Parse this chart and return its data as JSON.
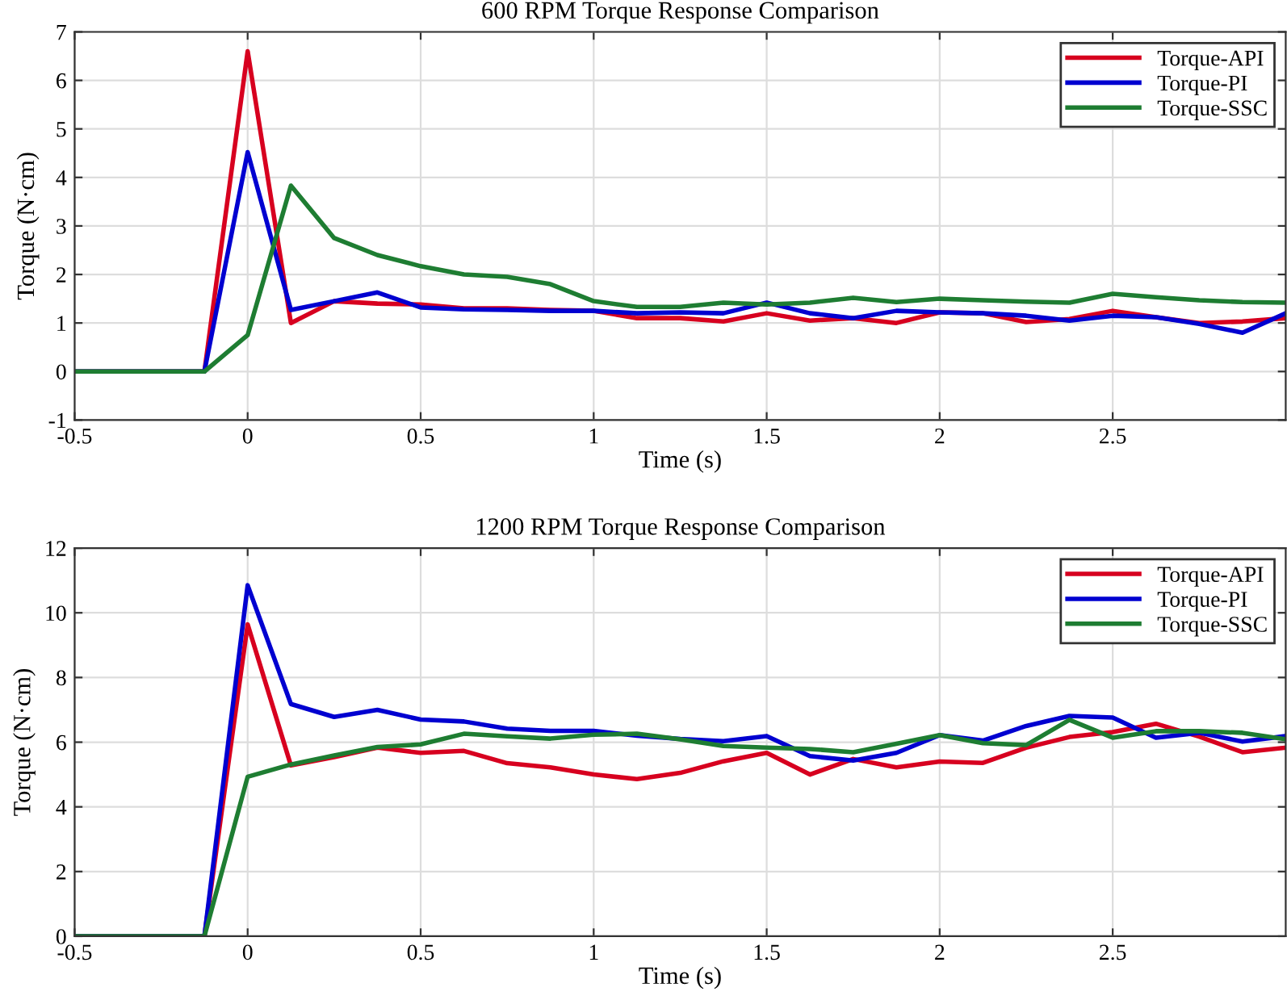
{
  "chart_data": [
    {
      "type": "line",
      "title": "600 RPM Torque Response Comparison",
      "xlabel": "Time (s)",
      "ylabel": "Torque (N·cm)",
      "x": [
        -0.5,
        -0.125,
        0,
        0.125,
        0.25,
        0.375,
        0.5,
        0.625,
        0.75,
        0.875,
        1.0,
        1.125,
        1.25,
        1.375,
        1.5,
        1.625,
        1.75,
        1.875,
        2.0,
        2.125,
        2.25,
        2.375,
        2.5,
        2.625,
        2.75,
        2.875,
        3.0
      ],
      "series": [
        {
          "name": "Torque-API",
          "color": "#d7001f",
          "values": [
            0,
            0,
            6.6,
            1.0,
            1.45,
            1.4,
            1.38,
            1.3,
            1.3,
            1.27,
            1.25,
            1.1,
            1.1,
            1.03,
            1.2,
            1.05,
            1.1,
            1.0,
            1.22,
            1.2,
            1.02,
            1.08,
            1.25,
            1.12,
            1.0,
            1.03,
            1.1
          ]
        },
        {
          "name": "Torque-PI",
          "color": "#0000d0",
          "values": [
            0,
            0,
            4.52,
            1.27,
            1.45,
            1.63,
            1.32,
            1.28,
            1.27,
            1.25,
            1.25,
            1.2,
            1.22,
            1.2,
            1.42,
            1.2,
            1.1,
            1.25,
            1.22,
            1.2,
            1.15,
            1.05,
            1.15,
            1.12,
            0.98,
            0.8,
            1.2
          ]
        },
        {
          "name": "Torque-SSC",
          "color": "#1e7d32",
          "values": [
            0,
            0,
            0.75,
            3.83,
            2.75,
            2.4,
            2.17,
            2.0,
            1.95,
            1.8,
            1.45,
            1.33,
            1.33,
            1.42,
            1.38,
            1.42,
            1.52,
            1.43,
            1.5,
            1.47,
            1.44,
            1.42,
            1.6,
            1.53,
            1.47,
            1.43,
            1.42
          ]
        }
      ],
      "xlim": [
        -0.5,
        3
      ],
      "xticks": [
        -0.5,
        0,
        0.5,
        1,
        1.5,
        2,
        2.5
      ],
      "ylim": [
        -1,
        7
      ],
      "yticks": [
        -1,
        0,
        1,
        2,
        3,
        4,
        5,
        6,
        7
      ],
      "grid": true,
      "legend": "top right",
      "line_style": "solid",
      "marker": "none"
    },
    {
      "type": "line",
      "title": "1200 RPM Torque Response Comparison",
      "xlabel": "Time (s)",
      "ylabel": "Torque (N·cm)",
      "x": [
        -0.5,
        -0.125,
        0,
        0.125,
        0.25,
        0.375,
        0.5,
        0.625,
        0.75,
        0.875,
        1.0,
        1.125,
        1.25,
        1.375,
        1.5,
        1.625,
        1.75,
        1.875,
        2.0,
        2.125,
        2.25,
        2.375,
        2.5,
        2.625,
        2.75,
        2.875,
        3.0
      ],
      "series": [
        {
          "name": "Torque-API",
          "color": "#d7001f",
          "values": [
            0,
            0,
            9.64,
            5.28,
            5.54,
            5.83,
            5.67,
            5.73,
            5.35,
            5.22,
            5.0,
            4.86,
            5.05,
            5.41,
            5.67,
            5.0,
            5.48,
            5.22,
            5.4,
            5.36,
            5.83,
            6.16,
            6.31,
            6.57,
            6.17,
            5.69,
            5.83
          ]
        },
        {
          "name": "Torque-PI",
          "color": "#0000d0",
          "values": [
            0,
            0,
            10.85,
            7.18,
            6.78,
            7.0,
            6.7,
            6.64,
            6.42,
            6.35,
            6.35,
            6.2,
            6.1,
            6.03,
            6.19,
            5.57,
            5.43,
            5.67,
            6.22,
            6.05,
            6.5,
            6.81,
            6.76,
            6.14,
            6.29,
            6.02,
            6.19
          ]
        },
        {
          "name": "Torque-SSC",
          "color": "#1e7d32",
          "values": [
            0,
            0,
            4.93,
            5.31,
            5.59,
            5.85,
            5.93,
            6.26,
            6.18,
            6.11,
            6.23,
            6.26,
            6.09,
            5.88,
            5.83,
            5.79,
            5.69,
            5.95,
            6.22,
            5.97,
            5.91,
            6.69,
            6.14,
            6.34,
            6.34,
            6.29,
            6.09
          ]
        }
      ],
      "xlim": [
        -0.5,
        3
      ],
      "xticks": [
        -0.5,
        0,
        0.5,
        1,
        1.5,
        2,
        2.5
      ],
      "ylim": [
        0,
        12
      ],
      "yticks": [
        0,
        2,
        4,
        6,
        8,
        10,
        12
      ],
      "grid": true,
      "legend": "top right",
      "line_style": "solid",
      "marker": "none"
    }
  ]
}
